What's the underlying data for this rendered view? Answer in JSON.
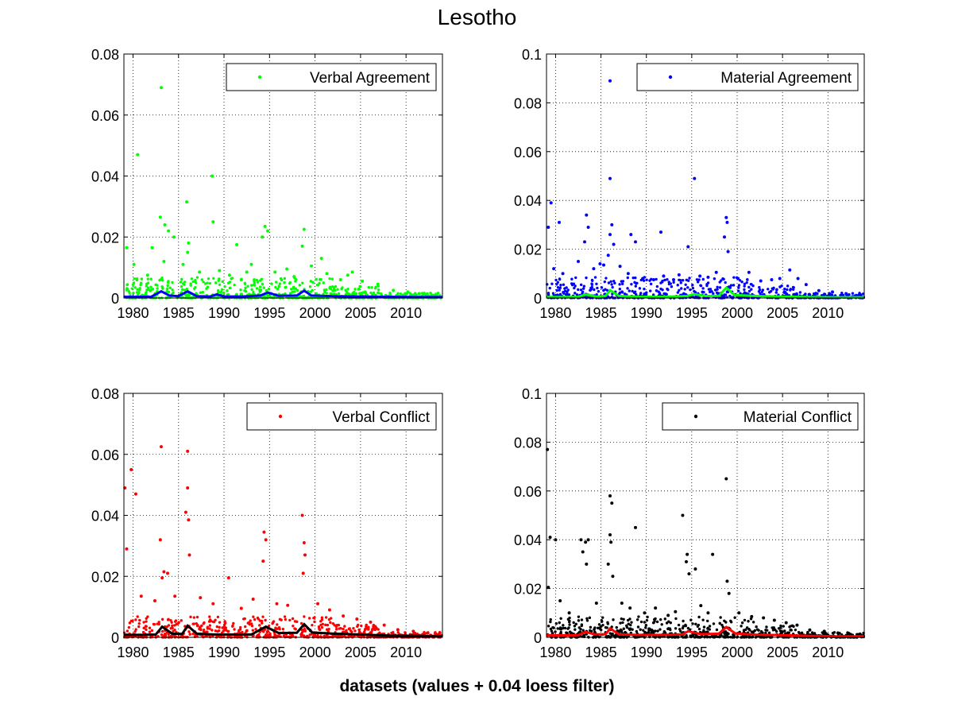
{
  "figure": {
    "title": "Lesotho",
    "xlabel": "datasets (values + 0.04 loess filter)"
  },
  "chart_data": [
    {
      "type": "scatter",
      "panel": "top-left",
      "legend": "Verbal Agreement",
      "legend_placement": "top-right",
      "grid": true,
      "xlim": [
        1979,
        2014
      ],
      "ylim": [
        0,
        0.08
      ],
      "xticks": [
        1980,
        1985,
        1990,
        1995,
        2000,
        2005,
        2010
      ],
      "yticks": [
        0,
        0.02,
        0.04,
        0.06,
        0.08
      ],
      "ytick_labels": [
        "0",
        "0.02",
        "0.04",
        "0.06",
        "0.08"
      ],
      "marker_color": "#00ff00",
      "smooth_color": "#0000ff",
      "points": [
        [
          1979.3,
          0.0165
        ],
        [
          1980.5,
          0.047
        ],
        [
          1983.1,
          0.069
        ],
        [
          1983.0,
          0.0265
        ],
        [
          1983.5,
          0.024
        ],
        [
          1983.9,
          0.022
        ],
        [
          1985.9,
          0.0315
        ],
        [
          1986.1,
          0.018
        ],
        [
          1988.7,
          0.04
        ],
        [
          1988.8,
          0.025
        ],
        [
          1991.4,
          0.0175
        ],
        [
          1994.5,
          0.0235
        ],
        [
          1994.8,
          0.022
        ],
        [
          1994.2,
          0.02
        ],
        [
          1998.8,
          0.0225
        ],
        [
          1998.6,
          0.017
        ],
        [
          2000.7,
          0.013
        ],
        [
          1984.5,
          0.02
        ],
        [
          1982.1,
          0.0165
        ],
        [
          1986.0,
          0.015
        ],
        [
          1993.0,
          0.011
        ],
        [
          1989.5,
          0.009
        ],
        [
          1980.1,
          0.011
        ],
        [
          1981.6,
          0.0075
        ],
        [
          1987.3,
          0.0085
        ],
        [
          1990.6,
          0.0075
        ],
        [
          1992.5,
          0.0085
        ],
        [
          1995.6,
          0.0085
        ],
        [
          1996.9,
          0.0095
        ],
        [
          1999.6,
          0.0105
        ],
        [
          2001.3,
          0.008
        ],
        [
          2002.8,
          0.006
        ],
        [
          2003.6,
          0.0075
        ],
        [
          2005.2,
          0.0055
        ],
        [
          2006.9,
          0.0045
        ],
        [
          2004.1,
          0.0085
        ],
        [
          1997.7,
          0.007
        ],
        [
          1983.4,
          0.012
        ],
        [
          1985.5,
          0.011
        ],
        [
          1991.9,
          0.006
        ],
        [
          2008.6,
          0.0025
        ],
        [
          2010.2,
          0.002
        ],
        [
          2012.1,
          0.0012
        ],
        [
          2013.3,
          0.0009
        ]
      ],
      "smooth": [
        [
          1979,
          0.0004
        ],
        [
          1980.5,
          0.0004
        ],
        [
          1982,
          0.0004
        ],
        [
          1983.1,
          0.0022
        ],
        [
          1984,
          0.0008
        ],
        [
          1985,
          0.0006
        ],
        [
          1986,
          0.0022
        ],
        [
          1987,
          0.0006
        ],
        [
          1988.5,
          0.0005
        ],
        [
          1989.2,
          0.0012
        ],
        [
          1990,
          0.0005
        ],
        [
          1992,
          0.0005
        ],
        [
          1994,
          0.0008
        ],
        [
          1994.8,
          0.0018
        ],
        [
          1996,
          0.0007
        ],
        [
          1998,
          0.0008
        ],
        [
          1998.8,
          0.0024
        ],
        [
          1999.6,
          0.0008
        ],
        [
          2002,
          0.0006
        ],
        [
          2005,
          0.0005
        ],
        [
          2008,
          0.0004
        ],
        [
          2011,
          0.0003
        ],
        [
          2014,
          0.0003
        ]
      ]
    },
    {
      "type": "scatter",
      "panel": "top-right",
      "legend": "Material Agreement",
      "legend_placement": "top-right",
      "grid": true,
      "xlim": [
        1979,
        2014
      ],
      "ylim": [
        0,
        0.1
      ],
      "xticks": [
        1980,
        1985,
        1990,
        1995,
        2000,
        2005,
        2010
      ],
      "yticks": [
        0,
        0.02,
        0.04,
        0.06,
        0.08,
        0.1
      ],
      "ytick_labels": [
        "0",
        "0.02",
        "0.04",
        "0.06",
        "0.08",
        "0.1"
      ],
      "marker_color": "#0000ff",
      "smooth_color": "#00ff00",
      "points": [
        [
          1986.0,
          0.089
        ],
        [
          1979.5,
          0.039
        ],
        [
          1979.2,
          0.029
        ],
        [
          1980.4,
          0.031
        ],
        [
          1983.4,
          0.034
        ],
        [
          1983.6,
          0.029
        ],
        [
          1983.2,
          0.023
        ],
        [
          1986.0,
          0.049
        ],
        [
          1986.2,
          0.03
        ],
        [
          1986.0,
          0.026
        ],
        [
          1986.4,
          0.022
        ],
        [
          1985.8,
          0.0175
        ],
        [
          1988.3,
          0.026
        ],
        [
          1988.8,
          0.023
        ],
        [
          1991.6,
          0.027
        ],
        [
          1995.3,
          0.049
        ],
        [
          1994.6,
          0.021
        ],
        [
          1998.8,
          0.033
        ],
        [
          1998.9,
          0.031
        ],
        [
          1998.6,
          0.025
        ],
        [
          1999.0,
          0.019
        ],
        [
          1979.8,
          0.012
        ],
        [
          1980.8,
          0.01
        ],
        [
          1982.5,
          0.015
        ],
        [
          1984.2,
          0.012
        ],
        [
          1984.9,
          0.014
        ],
        [
          1985.3,
          0.0135
        ],
        [
          1987.1,
          0.013
        ],
        [
          1988.0,
          0.01
        ],
        [
          1989.6,
          0.008
        ],
        [
          1990.8,
          0.0075
        ],
        [
          1991.9,
          0.009
        ],
        [
          1993.0,
          0.0075
        ],
        [
          1993.6,
          0.0095
        ],
        [
          1995.9,
          0.009
        ],
        [
          1996.8,
          0.0085
        ],
        [
          1997.7,
          0.0105
        ],
        [
          2000.1,
          0.008
        ],
        [
          2001.3,
          0.0105
        ],
        [
          2002.6,
          0.007
        ],
        [
          2003.8,
          0.0075
        ],
        [
          2004.7,
          0.008
        ],
        [
          2005.8,
          0.0115
        ],
        [
          2006.7,
          0.008
        ],
        [
          2007.6,
          0.0055
        ],
        [
          2009.0,
          0.003
        ],
        [
          2010.5,
          0.0025
        ],
        [
          2012.0,
          0.0018
        ],
        [
          2013.4,
          0.0012
        ]
      ],
      "smooth": [
        [
          1979,
          0.0004
        ],
        [
          1981,
          0.0004
        ],
        [
          1982.5,
          0.0005
        ],
        [
          1983.3,
          0.0014
        ],
        [
          1984.5,
          0.0006
        ],
        [
          1985.5,
          0.0008
        ],
        [
          1986.0,
          0.0032
        ],
        [
          1987,
          0.0008
        ],
        [
          1989,
          0.0005
        ],
        [
          1992,
          0.0005
        ],
        [
          1994.5,
          0.0008
        ],
        [
          1995.3,
          0.0016
        ],
        [
          1996.5,
          0.0008
        ],
        [
          1998,
          0.0009
        ],
        [
          1998.8,
          0.0042
        ],
        [
          1999.7,
          0.0012
        ],
        [
          2002,
          0.0008
        ],
        [
          2005,
          0.0006
        ],
        [
          2008,
          0.0004
        ],
        [
          2011,
          0.0003
        ],
        [
          2014,
          0.0003
        ]
      ]
    },
    {
      "type": "scatter",
      "panel": "bottom-left",
      "legend": "Verbal Conflict",
      "legend_placement": "top-right",
      "grid": true,
      "xlim": [
        1979,
        2014
      ],
      "ylim": [
        0,
        0.08
      ],
      "xticks": [
        1980,
        1985,
        1990,
        1995,
        2000,
        2005,
        2010
      ],
      "yticks": [
        0,
        0.02,
        0.04,
        0.06,
        0.08
      ],
      "ytick_labels": [
        "0",
        "0.02",
        "0.04",
        "0.06",
        "0.08"
      ],
      "marker_color": "#ff0000",
      "smooth_color": "#000000",
      "points": [
        [
          1979.1,
          0.049
        ],
        [
          1979.3,
          0.029
        ],
        [
          1979.8,
          0.055
        ],
        [
          1980.3,
          0.047
        ],
        [
          1983.1,
          0.0625
        ],
        [
          1983.0,
          0.032
        ],
        [
          1986.0,
          0.061
        ],
        [
          1986.0,
          0.049
        ],
        [
          1985.8,
          0.041
        ],
        [
          1986.1,
          0.0385
        ],
        [
          1986.2,
          0.027
        ],
        [
          1983.4,
          0.0215
        ],
        [
          1983.8,
          0.021
        ],
        [
          1983.2,
          0.0195
        ],
        [
          1990.5,
          0.0195
        ],
        [
          1994.4,
          0.0345
        ],
        [
          1994.6,
          0.032
        ],
        [
          1994.3,
          0.025
        ],
        [
          1998.6,
          0.04
        ],
        [
          1998.8,
          0.031
        ],
        [
          1998.9,
          0.027
        ],
        [
          1998.7,
          0.021
        ],
        [
          1980.9,
          0.0135
        ],
        [
          1982.4,
          0.012
        ],
        [
          1984.6,
          0.0135
        ],
        [
          1987.4,
          0.013
        ],
        [
          1988.8,
          0.011
        ],
        [
          1991.9,
          0.0095
        ],
        [
          1993.2,
          0.0125
        ],
        [
          1995.8,
          0.011
        ],
        [
          1997.0,
          0.0105
        ],
        [
          2000.3,
          0.011
        ],
        [
          2001.6,
          0.009
        ],
        [
          2003.1,
          0.007
        ],
        [
          2004.6,
          0.006
        ],
        [
          2006.1,
          0.005
        ],
        [
          2007.6,
          0.004
        ],
        [
          2009.1,
          0.0025
        ],
        [
          2010.8,
          0.002
        ],
        [
          2012.4,
          0.0015
        ],
        [
          2013.6,
          0.0009
        ]
      ],
      "smooth": [
        [
          1979,
          0.0008
        ],
        [
          1981,
          0.0008
        ],
        [
          1982.5,
          0.0009
        ],
        [
          1983.2,
          0.0035
        ],
        [
          1984.3,
          0.0012
        ],
        [
          1985.4,
          0.0011
        ],
        [
          1986.0,
          0.0038
        ],
        [
          1987,
          0.0012
        ],
        [
          1989,
          0.0009
        ],
        [
          1991,
          0.0009
        ],
        [
          1993,
          0.0009
        ],
        [
          1994.6,
          0.0035
        ],
        [
          1996,
          0.0014
        ],
        [
          1998,
          0.0015
        ],
        [
          1998.8,
          0.0043
        ],
        [
          1999.7,
          0.0016
        ],
        [
          2002,
          0.0012
        ],
        [
          2005,
          0.0009
        ],
        [
          2008,
          0.0006
        ],
        [
          2011,
          0.0005
        ],
        [
          2014,
          0.0004
        ]
      ]
    },
    {
      "type": "scatter",
      "panel": "bottom-right",
      "legend": "Material Conflict",
      "legend_placement": "top-right",
      "grid": true,
      "xlim": [
        1979,
        2014
      ],
      "ylim": [
        0,
        0.1
      ],
      "xticks": [
        1980,
        1985,
        1990,
        1995,
        2000,
        2005,
        2010
      ],
      "yticks": [
        0,
        0.02,
        0.04,
        0.06,
        0.08,
        0.1
      ],
      "ytick_labels": [
        "0",
        "0.02",
        "0.04",
        "0.06",
        "0.08",
        "0.1"
      ],
      "marker_color": "#000000",
      "smooth_color": "#ff0000",
      "points": [
        [
          1979.1,
          0.077
        ],
        [
          1979.4,
          0.041
        ],
        [
          1979.2,
          0.0205
        ],
        [
          1980.0,
          0.04
        ],
        [
          1982.8,
          0.04
        ],
        [
          1983.3,
          0.039
        ],
        [
          1983.6,
          0.04
        ],
        [
          1983.0,
          0.035
        ],
        [
          1983.4,
          0.03
        ],
        [
          1986.0,
          0.058
        ],
        [
          1986.2,
          0.055
        ],
        [
          1986.0,
          0.042
        ],
        [
          1986.1,
          0.039
        ],
        [
          1985.8,
          0.03
        ],
        [
          1986.3,
          0.025
        ],
        [
          1988.8,
          0.045
        ],
        [
          1994.0,
          0.05
        ],
        [
          1994.5,
          0.034
        ],
        [
          1994.4,
          0.031
        ],
        [
          1994.7,
          0.026
        ],
        [
          1995.4,
          0.028
        ],
        [
          1997.3,
          0.034
        ],
        [
          1998.8,
          0.065
        ],
        [
          1998.9,
          0.023
        ],
        [
          1999.1,
          0.018
        ],
        [
          1980.5,
          0.015
        ],
        [
          1981.5,
          0.01
        ],
        [
          1984.5,
          0.014
        ],
        [
          1987.3,
          0.014
        ],
        [
          1988.2,
          0.012
        ],
        [
          1989.8,
          0.01
        ],
        [
          1991.0,
          0.012
        ],
        [
          1992.4,
          0.009
        ],
        [
          1993.2,
          0.0105
        ],
        [
          1996.0,
          0.013
        ],
        [
          1996.8,
          0.01
        ],
        [
          2000.2,
          0.01
        ],
        [
          2001.6,
          0.0085
        ],
        [
          2002.9,
          0.008
        ],
        [
          2004.1,
          0.007
        ],
        [
          2005.4,
          0.006
        ],
        [
          2006.6,
          0.005
        ],
        [
          2008.0,
          0.003
        ],
        [
          2009.6,
          0.0025
        ],
        [
          2011.1,
          0.0018
        ],
        [
          2012.5,
          0.0012
        ],
        [
          2013.6,
          0.0009
        ]
      ],
      "smooth": [
        [
          1979,
          0.0008
        ],
        [
          1981,
          0.0008
        ],
        [
          1982.5,
          0.0009
        ],
        [
          1983.3,
          0.0022
        ],
        [
          1984.3,
          0.0012
        ],
        [
          1985.5,
          0.0012
        ],
        [
          1986.0,
          0.0036
        ],
        [
          1987,
          0.0012
        ],
        [
          1989,
          0.001
        ],
        [
          1992,
          0.001
        ],
        [
          1994,
          0.0012
        ],
        [
          1994.6,
          0.0025
        ],
        [
          1996,
          0.0013
        ],
        [
          1998,
          0.0015
        ],
        [
          1998.8,
          0.0042
        ],
        [
          1999.8,
          0.0016
        ],
        [
          2002,
          0.0011
        ],
        [
          2005,
          0.0009
        ],
        [
          2008,
          0.0006
        ],
        [
          2011,
          0.0004
        ],
        [
          2014,
          0.0004
        ]
      ]
    }
  ]
}
